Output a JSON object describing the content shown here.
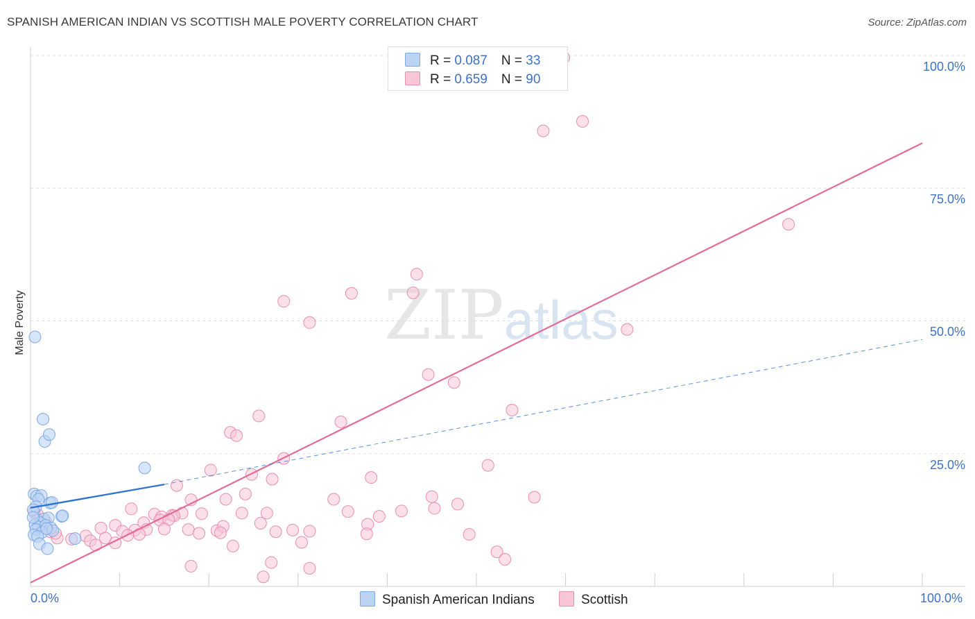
{
  "title": "SPANISH AMERICAN INDIAN VS SCOTTISH MALE POVERTY CORRELATION CHART",
  "source": "Source: ZipAtlas.com",
  "watermark": {
    "zip": "ZIP",
    "atlas": "atlas"
  },
  "colors": {
    "blue": "#7ea9e6",
    "blue_fill": "#bcd3f3",
    "blue_line": "#2f74d0",
    "pink": "#e98db0",
    "pink_fill": "#f8c6d7",
    "pink_line": "#e26b98",
    "tick_text": "#3d72c4",
    "grid": "#dddddd"
  },
  "legend": {
    "row1": {
      "r_label": "R = ",
      "r_value": "0.087",
      "n_label": "N = ",
      "n_value": "33"
    },
    "row2": {
      "r_label": "R = ",
      "r_value": "0.659",
      "n_label": "N = ",
      "n_value": "90"
    }
  },
  "bottom_legend": {
    "series1": "Spanish American Indians",
    "series2": "Scottish"
  },
  "chart_data": {
    "type": "scatter",
    "title": "SPANISH AMERICAN INDIAN VS SCOTTISH MALE POVERTY CORRELATION CHART",
    "xlabel": "",
    "ylabel": "Male Poverty",
    "xlim": [
      0,
      100
    ],
    "ylim": [
      0,
      100
    ],
    "x_tick_labels": [
      "0.0%",
      "100.0%"
    ],
    "y_tick_labels": [
      "25.0%",
      "50.0%",
      "75.0%",
      "100.0%"
    ],
    "y_ticks": [
      25,
      50,
      75,
      100
    ],
    "grid": true,
    "series": [
      {
        "name": "Spanish American Indians",
        "R": 0.087,
        "N": 33,
        "trend": {
          "x0": 0,
          "y0": 14.8,
          "x1": 15,
          "y1": 19.2,
          "extend_to": 100,
          "extend_y": 46.5
        },
        "points": [
          [
            0.5,
            47.0
          ],
          [
            1.4,
            31.5
          ],
          [
            1.6,
            27.3
          ],
          [
            2.1,
            28.6
          ],
          [
            12.8,
            22.3
          ],
          [
            0.4,
            17.4
          ],
          [
            0.7,
            17.0
          ],
          [
            1.2,
            17.1
          ],
          [
            0.9,
            16.4
          ],
          [
            2.2,
            15.7
          ],
          [
            2.4,
            15.8
          ],
          [
            0.6,
            15.0
          ],
          [
            0.3,
            14.4
          ],
          [
            3.5,
            13.2
          ],
          [
            3.6,
            13.3
          ],
          [
            0.8,
            12.5
          ],
          [
            1.5,
            12.7
          ],
          [
            2.0,
            12.9
          ],
          [
            1.1,
            12.0
          ],
          [
            0.5,
            11.6
          ],
          [
            0.9,
            11.2
          ],
          [
            1.7,
            11.5
          ],
          [
            2.3,
            11.0
          ],
          [
            0.6,
            10.7
          ],
          [
            1.3,
            10.2
          ],
          [
            2.5,
            10.5
          ],
          [
            1.8,
            10.9
          ],
          [
            0.4,
            9.7
          ],
          [
            0.8,
            9.4
          ],
          [
            5.0,
            9.0
          ],
          [
            1.0,
            8.0
          ],
          [
            1.9,
            7.1
          ],
          [
            0.3,
            13.0
          ]
        ]
      },
      {
        "name": "Scottish",
        "R": 0.659,
        "N": 90,
        "trend": {
          "x0": 0,
          "y0": 0.7,
          "x1": 100,
          "y1": 83.5
        },
        "points": [
          [
            59.1,
            99.5
          ],
          [
            59.2,
            99.8
          ],
          [
            59.4,
            100.0
          ],
          [
            59.8,
            99.6
          ],
          [
            57.5,
            85.8
          ],
          [
            61.9,
            87.6
          ],
          [
            85.0,
            68.2
          ],
          [
            43.3,
            58.8
          ],
          [
            36.0,
            55.2
          ],
          [
            42.9,
            55.3
          ],
          [
            28.4,
            53.7
          ],
          [
            31.3,
            49.7
          ],
          [
            66.9,
            48.4
          ],
          [
            44.6,
            39.9
          ],
          [
            47.5,
            38.4
          ],
          [
            54.0,
            33.2
          ],
          [
            25.6,
            32.1
          ],
          [
            34.8,
            31.0
          ],
          [
            22.4,
            29.0
          ],
          [
            23.1,
            28.4
          ],
          [
            28.4,
            24.1
          ],
          [
            51.3,
            22.8
          ],
          [
            20.2,
            21.9
          ],
          [
            24.8,
            21.1
          ],
          [
            27.1,
            20.2
          ],
          [
            38.2,
            20.5
          ],
          [
            16.4,
            19.0
          ],
          [
            24.1,
            17.4
          ],
          [
            45.0,
            16.9
          ],
          [
            56.5,
            16.8
          ],
          [
            18.0,
            16.3
          ],
          [
            21.9,
            16.4
          ],
          [
            34.0,
            16.4
          ],
          [
            47.9,
            15.5
          ],
          [
            11.3,
            14.6
          ],
          [
            23.7,
            13.8
          ],
          [
            26.5,
            13.8
          ],
          [
            19.2,
            13.7
          ],
          [
            35.6,
            14.1
          ],
          [
            39.1,
            13.2
          ],
          [
            41.6,
            14.2
          ],
          [
            45.3,
            14.7
          ],
          [
            13.9,
            13.6
          ],
          [
            14.7,
            13.1
          ],
          [
            15.9,
            13.4
          ],
          [
            17.0,
            13.8
          ],
          [
            16.1,
            13.3
          ],
          [
            14.5,
            12.5
          ],
          [
            15.5,
            12.6
          ],
          [
            12.7,
            12.0
          ],
          [
            9.5,
            11.5
          ],
          [
            7.9,
            11.0
          ],
          [
            10.3,
            10.4
          ],
          [
            11.7,
            10.6
          ],
          [
            13.0,
            10.7
          ],
          [
            15.0,
            10.8
          ],
          [
            17.7,
            10.7
          ],
          [
            20.9,
            10.5
          ],
          [
            21.6,
            11.3
          ],
          [
            25.8,
            11.9
          ],
          [
            27.5,
            10.3
          ],
          [
            29.4,
            10.6
          ],
          [
            31.3,
            10.4
          ],
          [
            37.8,
            11.7
          ],
          [
            10.9,
            9.6
          ],
          [
            12.2,
            9.8
          ],
          [
            6.2,
            9.5
          ],
          [
            8.4,
            9.1
          ],
          [
            18.9,
            10.0
          ],
          [
            21.3,
            10.1
          ],
          [
            37.7,
            9.9
          ],
          [
            3.0,
            9.1
          ],
          [
            4.6,
            8.9
          ],
          [
            6.7,
            8.6
          ],
          [
            9.5,
            8.2
          ],
          [
            7.3,
            7.8
          ],
          [
            22.7,
            7.6
          ],
          [
            30.4,
            8.3
          ],
          [
            49.2,
            9.8
          ],
          [
            0.8,
            13.5
          ],
          [
            0.4,
            14.0
          ],
          [
            1.7,
            12.2
          ],
          [
            52.3,
            6.5
          ],
          [
            53.2,
            5.1
          ],
          [
            27.0,
            4.5
          ],
          [
            18.0,
            3.8
          ],
          [
            31.3,
            3.4
          ],
          [
            26.1,
            1.8
          ],
          [
            2.2,
            10.3
          ],
          [
            2.8,
            10.0
          ]
        ]
      }
    ]
  }
}
